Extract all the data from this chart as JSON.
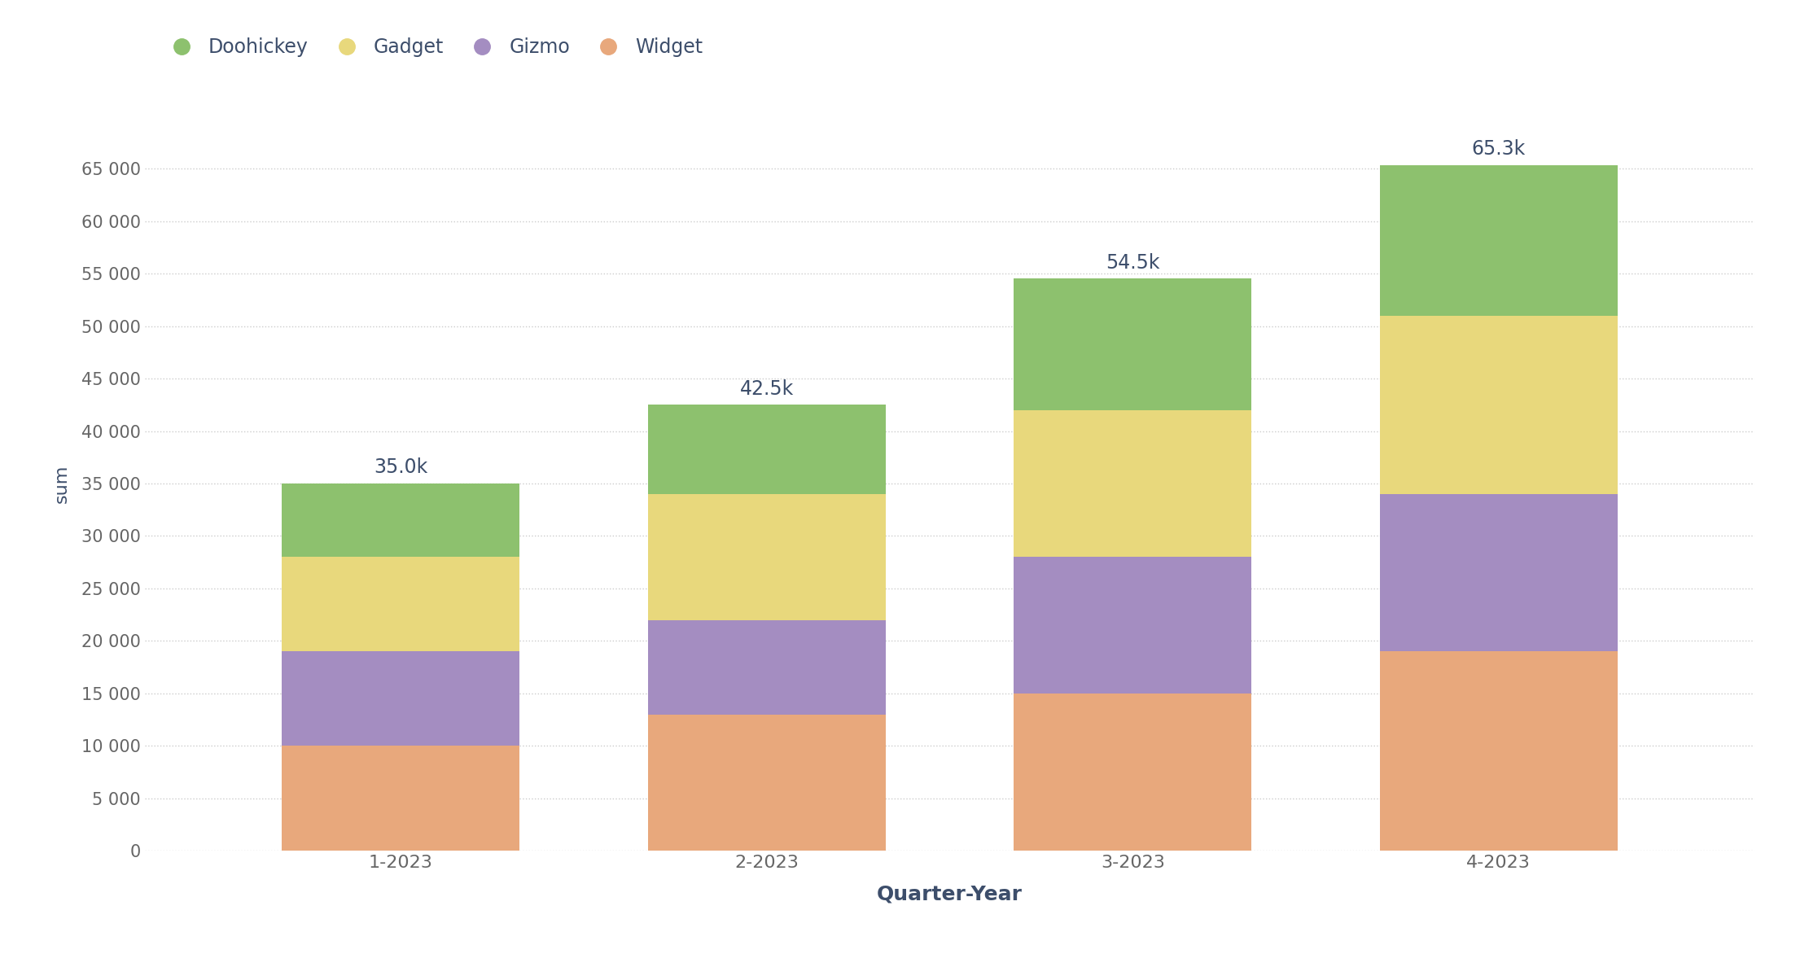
{
  "categories": [
    "1-2023",
    "2-2023",
    "3-2023",
    "4-2023"
  ],
  "series": {
    "Widget": [
      10000,
      13000,
      15000,
      19000
    ],
    "Gizmo": [
      9000,
      9000,
      13000,
      15000
    ],
    "Gadget": [
      9000,
      12000,
      14000,
      17000
    ],
    "Doohickey": [
      7000,
      8500,
      12500,
      14300
    ]
  },
  "colors": {
    "Widget": "#E8A87C",
    "Gizmo": "#A48DC1",
    "Gadget": "#E8D87C",
    "Doohickey": "#8DC16E"
  },
  "totals": [
    35000,
    42500,
    54500,
    65300
  ],
  "total_labels": [
    "35.0k",
    "42.5k",
    "54.5k",
    "65.3k"
  ],
  "xlabel": "Quarter-Year",
  "ylabel": "sum",
  "ylim": [
    0,
    70000
  ],
  "yticks": [
    0,
    5000,
    10000,
    15000,
    20000,
    25000,
    30000,
    35000,
    40000,
    45000,
    50000,
    55000,
    60000,
    65000
  ],
  "ytick_labels": [
    "0",
    "5 000",
    "10 000",
    "15 000",
    "20 000",
    "25 000",
    "30 000",
    "35 000",
    "40 000",
    "45 000",
    "50 000",
    "55 000",
    "60 000",
    "65 000"
  ],
  "background_color": "#ffffff",
  "grid_color": "#cccccc",
  "text_color": "#3d4e6b",
  "bar_width": 0.65,
  "legend_order": [
    "Doohickey",
    "Gadget",
    "Gizmo",
    "Widget"
  ]
}
